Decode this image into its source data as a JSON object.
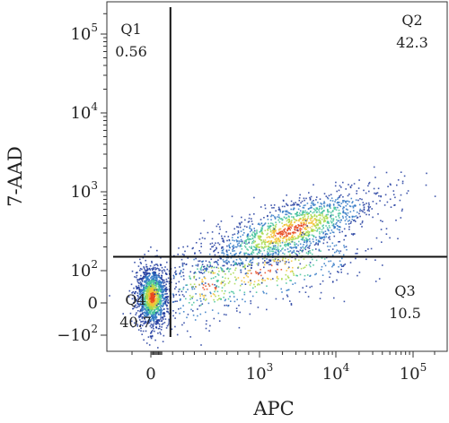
{
  "chart_data": {
    "type": "scatter",
    "xlabel": "APC",
    "ylabel": "7-AAD",
    "x_axis": {
      "scale": "biexponential",
      "ticks": [
        {
          "value": 0,
          "label_main": "0",
          "label_exp": ""
        },
        {
          "value": 1000,
          "label_main": "10",
          "label_exp": "3"
        },
        {
          "value": 10000,
          "label_main": "10",
          "label_exp": "4"
        },
        {
          "value": 100000,
          "label_main": "10",
          "label_exp": "5"
        }
      ]
    },
    "y_axis": {
      "scale": "biexponential",
      "ticks": [
        {
          "value": -100,
          "label_main": "−10",
          "label_exp": "2"
        },
        {
          "value": 0,
          "label_main": "0",
          "label_exp": ""
        },
        {
          "value": 100,
          "label_main": "10",
          "label_exp": "2"
        },
        {
          "value": 1000,
          "label_main": "10",
          "label_exp": "3"
        },
        {
          "value": 10000,
          "label_main": "10",
          "label_exp": "4"
        },
        {
          "value": 100000,
          "label_main": "10",
          "label_exp": "5"
        }
      ]
    },
    "gates": {
      "x": 180,
      "y": 150
    },
    "quadrants": [
      {
        "name": "Q1",
        "value": "0.56",
        "corner": "top-left"
      },
      {
        "name": "Q2",
        "value": "42.3",
        "corner": "top-right"
      },
      {
        "name": "Q3",
        "value": "10.5",
        "corner": "bottom-right"
      },
      {
        "name": "Q4",
        "value": "40.7",
        "corner": "bottom-left"
      }
    ],
    "populations": [
      {
        "name": "Q4",
        "x_center": 8,
        "y_center": 20,
        "fraction": 0.407
      },
      {
        "name": "Q2",
        "x_center": 2500,
        "y_center": 330,
        "fraction": 0.423
      },
      {
        "name": "Q3",
        "x_center": 1200,
        "y_center": 100,
        "fraction": 0.105
      }
    ],
    "colormap": [
      "#1f3a9e",
      "#2f78c4",
      "#43c29a",
      "#a8d94a",
      "#f2c232",
      "#e8481f"
    ],
    "grid": false
  }
}
